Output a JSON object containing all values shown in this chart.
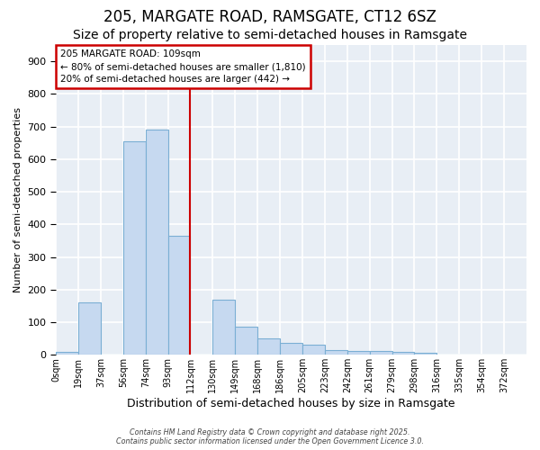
{
  "title1": "205, MARGATE ROAD, RAMSGATE, CT12 6SZ",
  "title2": "Size of property relative to semi-detached houses in Ramsgate",
  "xlabel": "Distribution of semi-detached houses by size in Ramsgate",
  "ylabel": "Number of semi-detached properties",
  "bin_labels": [
    "0sqm",
    "19sqm",
    "37sqm",
    "56sqm",
    "74sqm",
    "93sqm",
    "112sqm",
    "130sqm",
    "149sqm",
    "168sqm",
    "186sqm",
    "205sqm",
    "223sqm",
    "242sqm",
    "261sqm",
    "279sqm",
    "298sqm",
    "316sqm",
    "335sqm",
    "354sqm",
    "372sqm"
  ],
  "bar_heights": [
    8,
    160,
    0,
    655,
    690,
    365,
    0,
    170,
    85,
    50,
    38,
    32,
    15,
    12,
    12,
    10,
    5,
    2,
    0,
    0,
    0
  ],
  "bar_color": "#c6d9f0",
  "bar_edge_color": "#7bafd4",
  "vline_color": "#cc0000",
  "annotation_text": "205 MARGATE ROAD: 109sqm\n← 80% of semi-detached houses are smaller (1,810)\n20% of semi-detached houses are larger (442) →",
  "annotation_box_color": "#ffffff",
  "annotation_box_edge": "#cc0000",
  "ylim": [
    0,
    950
  ],
  "yticks": [
    0,
    100,
    200,
    300,
    400,
    500,
    600,
    700,
    800,
    900
  ],
  "footer": "Contains HM Land Registry data © Crown copyright and database right 2025.\nContains public sector information licensed under the Open Government Licence 3.0.",
  "bg_color": "#ffffff",
  "plot_bg_color": "#e8eef5",
  "grid_color": "#ffffff",
  "title1_fontsize": 12,
  "title2_fontsize": 10
}
